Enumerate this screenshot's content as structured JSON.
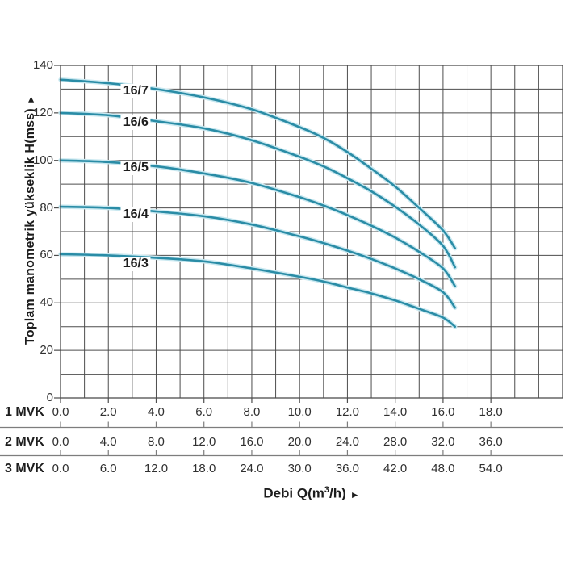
{
  "labels": {
    "y_axis_title": "Toplam manometrik yükseklik H(mss)",
    "y_axis_arrow": "►",
    "x_axis_title_prefix": "Debi Q(m",
    "x_axis_title_sup": "3",
    "x_axis_title_suffix": "/h)",
    "x_axis_arrow": "►"
  },
  "colors": {
    "curve": "#2a8ca6",
    "curve_halo": "#c9e8f0",
    "grid": "#4d4d4d",
    "axis_text": "#303030",
    "separator": "#7d7d7d",
    "background": "#ffffff"
  },
  "chart_data": {
    "type": "line",
    "title": "",
    "ylabel": "Toplam manometrik yükseklik H(mss)",
    "xlabel": "Debi Q(m3/h)",
    "ylim": [
      0,
      140
    ],
    "y_grid_step": 10,
    "y_tick_step": 20,
    "y_tick_labels": [
      "0",
      "20",
      "40",
      "60",
      "80",
      "100",
      "120",
      "140"
    ],
    "y_tick_values": [
      0,
      20,
      40,
      60,
      80,
      100,
      120,
      140
    ],
    "x_grid_units": 21,
    "x_grid_step": 1,
    "x_tick_unit_positions": [
      0,
      2,
      4,
      6,
      8,
      10,
      12,
      14,
      16,
      18
    ],
    "grid": true,
    "legend_position": "labels-on-curves",
    "x_scales": [
      {
        "label": "1 MVK",
        "ticks": [
          "0.0",
          "2.0",
          "4.0",
          "6.0",
          "8.0",
          "10.0",
          "12.0",
          "14.0",
          "16.0",
          "18.0"
        ]
      },
      {
        "label": "2 MVK",
        "ticks": [
          "0.0",
          "4.0",
          "8.0",
          "12.0",
          "16.0",
          "20.0",
          "24.0",
          "28.0",
          "32.0",
          "36.0"
        ]
      },
      {
        "label": "3 MVK",
        "ticks": [
          "0.0",
          "6.0",
          "12.0",
          "18.0",
          "24.0",
          "30.0",
          "36.0",
          "42.0",
          "48.0",
          "54.0"
        ]
      }
    ],
    "series": [
      {
        "name": "16/7",
        "label_x": 3.15,
        "label_h": 129,
        "points": [
          [
            0,
            134
          ],
          [
            2,
            132.5
          ],
          [
            4,
            130
          ],
          [
            6,
            126.5
          ],
          [
            8,
            121.5
          ],
          [
            10,
            114
          ],
          [
            11,
            109.5
          ],
          [
            12,
            103.5
          ],
          [
            13,
            96.5
          ],
          [
            14,
            89
          ],
          [
            15,
            80
          ],
          [
            16,
            70.5
          ],
          [
            16.5,
            63
          ]
        ]
      },
      {
        "name": "16/6",
        "label_x": 3.15,
        "label_h": 116,
        "points": [
          [
            0,
            120
          ],
          [
            2,
            119
          ],
          [
            4,
            116.5
          ],
          [
            6,
            113.5
          ],
          [
            8,
            108.5
          ],
          [
            10,
            101.5
          ],
          [
            11,
            97.5
          ],
          [
            12,
            92.5
          ],
          [
            13,
            87
          ],
          [
            14,
            80.5
          ],
          [
            15,
            73
          ],
          [
            16,
            64
          ],
          [
            16.5,
            55
          ]
        ]
      },
      {
        "name": "16/5",
        "label_x": 3.15,
        "label_h": 97,
        "points": [
          [
            0,
            100
          ],
          [
            2,
            99.3
          ],
          [
            4,
            97.5
          ],
          [
            6,
            94.5
          ],
          [
            8,
            90.5
          ],
          [
            10,
            84.5
          ],
          [
            11,
            81
          ],
          [
            12,
            77
          ],
          [
            13,
            72.5
          ],
          [
            14,
            67.5
          ],
          [
            15,
            61.5
          ],
          [
            16,
            54.5
          ],
          [
            16.5,
            47
          ]
        ]
      },
      {
        "name": "16/4",
        "label_x": 3.15,
        "label_h": 77,
        "points": [
          [
            0,
            80.5
          ],
          [
            2,
            80
          ],
          [
            4,
            78.5
          ],
          [
            6,
            76.5
          ],
          [
            8,
            73
          ],
          [
            10,
            68
          ],
          [
            11,
            65.2
          ],
          [
            12,
            62
          ],
          [
            13,
            58.5
          ],
          [
            14,
            54.5
          ],
          [
            15,
            50
          ],
          [
            16,
            44.5
          ],
          [
            16.5,
            38
          ]
        ]
      },
      {
        "name": "16/3",
        "label_x": 3.15,
        "label_h": 56.5,
        "points": [
          [
            0,
            60.5
          ],
          [
            2,
            60
          ],
          [
            4,
            59
          ],
          [
            6,
            57.5
          ],
          [
            8,
            54.5
          ],
          [
            10,
            51
          ],
          [
            11,
            49
          ],
          [
            12,
            46.5
          ],
          [
            13,
            44
          ],
          [
            14,
            41
          ],
          [
            15,
            37.5
          ],
          [
            16,
            33.8
          ],
          [
            16.5,
            30
          ]
        ]
      }
    ]
  }
}
